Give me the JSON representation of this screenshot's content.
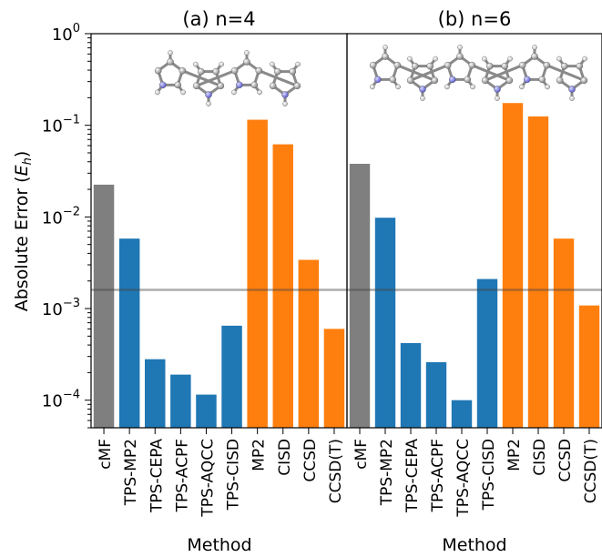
{
  "ylabel": "Absolute Error (",
  "ylabel_sym": "E",
  "ylabel_sub": "h",
  "ylabel_close": ")",
  "xlabel": "Method",
  "colors": {
    "reference": "#7f7f7f",
    "tps": "#1f77b4",
    "conventional": "#ff7f0e",
    "hline": "#9a9a9a"
  },
  "y_ticks": [
    {
      "value": 1,
      "base": "10",
      "exp": "0"
    },
    {
      "value": 0.1,
      "base": "10",
      "exp": "−1"
    },
    {
      "value": 0.01,
      "base": "10",
      "exp": "−2"
    },
    {
      "value": 0.001,
      "base": "10",
      "exp": "−3"
    },
    {
      "value": 0.0001,
      "base": "10",
      "exp": "−4"
    }
  ],
  "chart_data": [
    {
      "type": "bar",
      "title": "(a) n=4",
      "yscale": "log",
      "ylim": [
        5e-05,
        1
      ],
      "reference_line": 0.0016,
      "categories": [
        "cMF",
        "TPS-MP2",
        "TPS-CEPA",
        "TPS-ACPF",
        "TPS-AQCC",
        "TPS-CISD",
        "MP2",
        "CISD",
        "CCSD",
        "CCSD(T)"
      ],
      "values": [
        0.0225,
        0.0058,
        0.00028,
        0.00019,
        0.000115,
        0.00065,
        0.115,
        0.062,
        0.0034,
        0.0006
      ],
      "groups": [
        "reference",
        "tps",
        "tps",
        "tps",
        "tps",
        "tps",
        "conventional",
        "conventional",
        "conventional",
        "conventional"
      ]
    },
    {
      "type": "bar",
      "title": "(b) n=6",
      "yscale": "log",
      "ylim": [
        5e-05,
        1
      ],
      "reference_line": 0.0016,
      "categories": [
        "cMF",
        "TPS-MP2",
        "TPS-CEPA",
        "TPS-ACPF",
        "TPS-AQCC",
        "TPS-CISD",
        "MP2",
        "CISD",
        "CCSD",
        "CCSD(T)"
      ],
      "values": [
        0.038,
        0.0098,
        0.00042,
        0.00026,
        0.0001,
        0.0021,
        0.175,
        0.125,
        0.0058,
        0.00108
      ],
      "groups": [
        "reference",
        "tps",
        "tps",
        "tps",
        "tps",
        "tps",
        "conventional",
        "conventional",
        "conventional",
        "conventional"
      ]
    }
  ]
}
